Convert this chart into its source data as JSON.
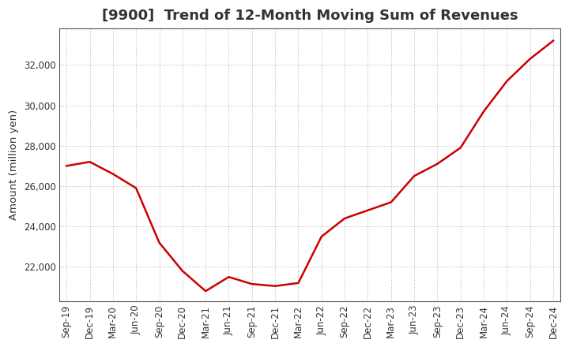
{
  "title": "[9900]  Trend of 12-Month Moving Sum of Revenues",
  "ylabel": "Amount (million yen)",
  "background_color": "#ffffff",
  "line_color": "#cc0000",
  "grid_color": "#999999",
  "x_labels": [
    "Sep-19",
    "Dec-19",
    "Mar-20",
    "Jun-20",
    "Sep-20",
    "Dec-20",
    "Mar-21",
    "Jun-21",
    "Sep-21",
    "Dec-21",
    "Mar-22",
    "Jun-22",
    "Sep-22",
    "Dec-22",
    "Mar-23",
    "Jun-23",
    "Sep-23",
    "Dec-23",
    "Mar-24",
    "Jun-24",
    "Sep-24",
    "Dec-24"
  ],
  "values": [
    27000,
    27200,
    26600,
    25900,
    23200,
    21800,
    20800,
    21500,
    21150,
    21050,
    21200,
    23500,
    24400,
    24800,
    25200,
    26500,
    27100,
    27900,
    29700,
    31200,
    32300,
    33200
  ],
  "ylim_min": 20300,
  "ylim_max": 33800,
  "yticks": [
    22000,
    24000,
    26000,
    28000,
    30000,
    32000
  ],
  "title_fontsize": 13,
  "tick_fontsize": 8.5,
  "ylabel_fontsize": 9.5,
  "title_color": "#333333"
}
